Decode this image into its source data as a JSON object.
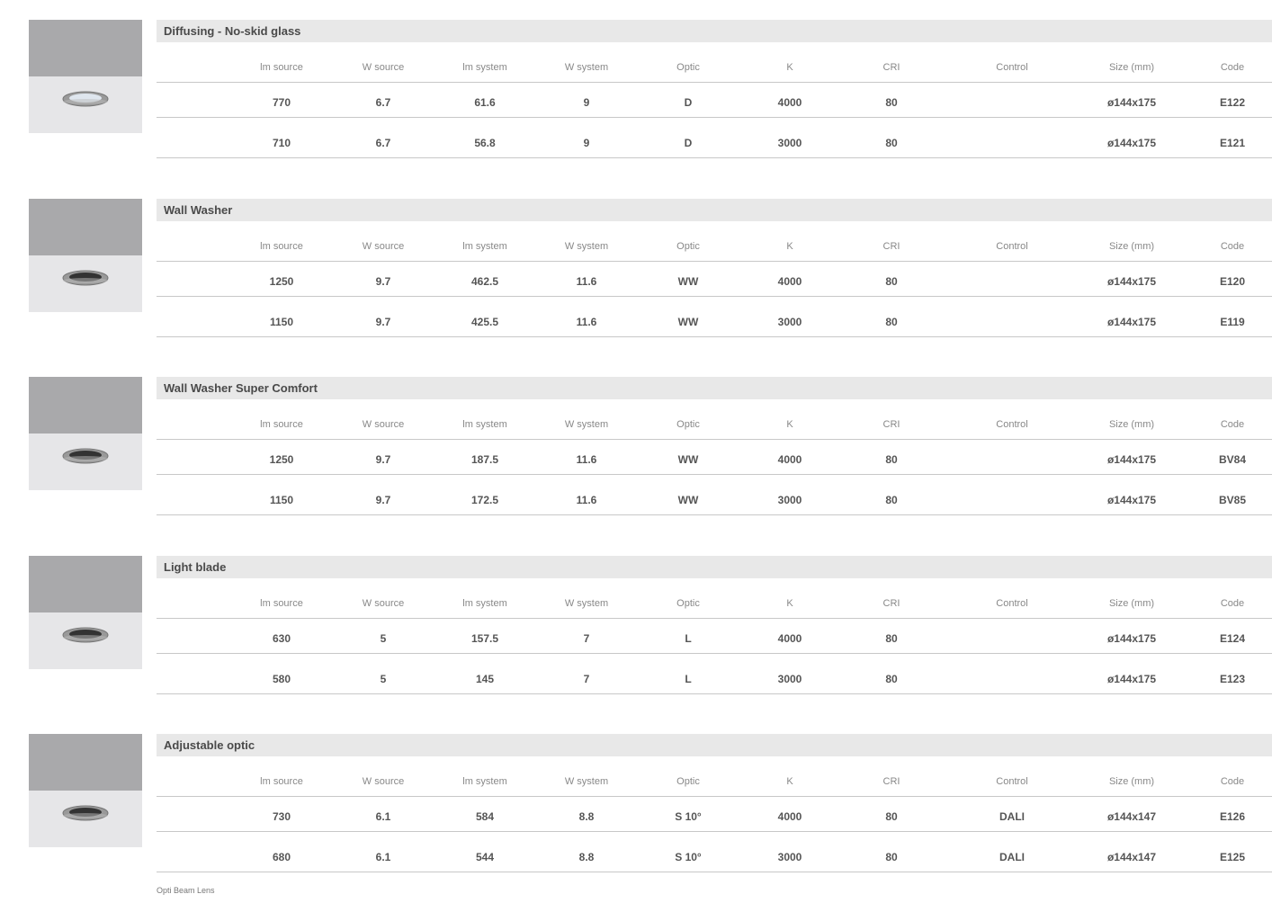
{
  "columns": [
    "lm source",
    "W source",
    "lm system",
    "W system",
    "Optic",
    "K",
    "CRI",
    "Control",
    "Size (mm)",
    "Code"
  ],
  "sections": [
    {
      "title": "Diffusing - No-skid glass",
      "rows": [
        [
          770,
          6.7,
          61.6,
          9,
          "D",
          4000,
          80,
          null,
          "ø144x175",
          "E122"
        ],
        [
          710,
          6.7,
          56.8,
          9,
          "D",
          3000,
          80,
          null,
          "ø144x175",
          "E121"
        ]
      ]
    },
    {
      "title": "Wall Washer",
      "rows": [
        [
          1250,
          9.7,
          462.5,
          11.6,
          "WW",
          4000,
          80,
          null,
          "ø144x175",
          "E120"
        ],
        [
          1150,
          9.7,
          425.5,
          11.6,
          "WW",
          3000,
          80,
          null,
          "ø144x175",
          "E119"
        ]
      ]
    },
    {
      "title": "Wall Washer Super Comfort",
      "rows": [
        [
          1250,
          9.7,
          187.5,
          11.6,
          "WW",
          4000,
          80,
          null,
          "ø144x175",
          "BV84"
        ],
        [
          1150,
          9.7,
          172.5,
          11.6,
          "WW",
          3000,
          80,
          null,
          "ø144x175",
          "BV85"
        ]
      ]
    },
    {
      "title": "Light blade",
      "rows": [
        [
          630,
          5,
          157.5,
          7,
          "L",
          4000,
          80,
          null,
          "ø144x175",
          "E124"
        ],
        [
          580,
          5,
          145,
          7,
          "L",
          3000,
          80,
          null,
          "ø144x175",
          "E123"
        ]
      ]
    },
    {
      "title": "Adjustable optic",
      "rows": [
        [
          730,
          6.1,
          584,
          8.8,
          "S 10°",
          4000,
          80,
          "DALI",
          "ø144x147",
          "E126"
        ],
        [
          680,
          6.1,
          544,
          8.8,
          "S 10°",
          3000,
          80,
          "DALI",
          "ø144x147",
          "E125"
        ]
      ]
    }
  ],
  "footnote": "Opti Beam Lens"
}
